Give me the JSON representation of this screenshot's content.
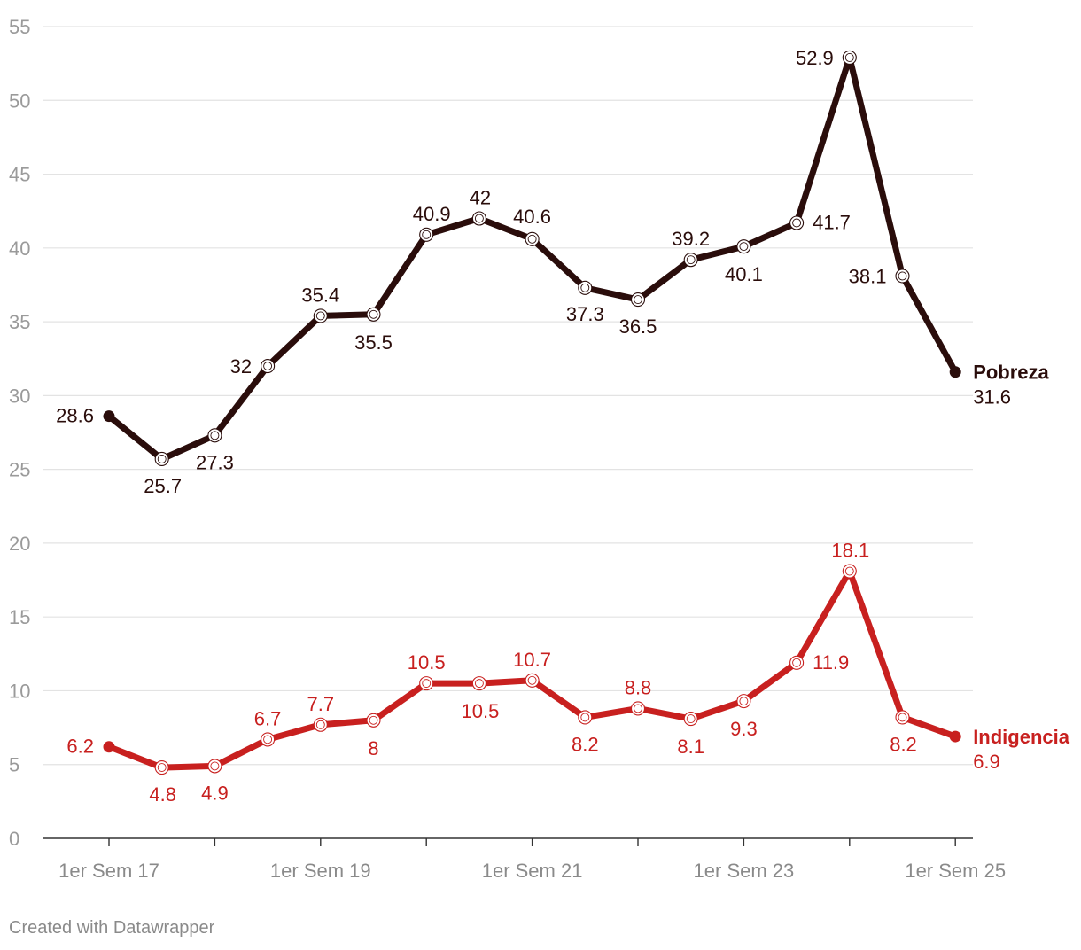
{
  "chart_data": {
    "type": "line",
    "title": "",
    "xlabel": "",
    "ylabel": "",
    "ylim": [
      0,
      55
    ],
    "yticks": [
      0,
      5,
      10,
      15,
      20,
      25,
      30,
      35,
      40,
      45,
      50,
      55
    ],
    "grid": true,
    "x_tick_labels": [
      "1er Sem 17",
      "1er Sem 19",
      "1er Sem 21",
      "1er Sem 23",
      "1er Sem 25"
    ],
    "x_tick_label_indices": [
      0,
      4,
      8,
      12,
      16
    ],
    "point_count": 17,
    "series": [
      {
        "name": "Pobreza",
        "color": "#2a0d0b",
        "values": [
          28.6,
          25.7,
          27.3,
          32,
          35.4,
          35.5,
          40.9,
          42,
          40.6,
          37.3,
          36.5,
          39.2,
          40.1,
          41.7,
          52.9,
          38.1,
          31.6
        ],
        "labels": [
          "28.6",
          "25.7",
          "27.3",
          "32",
          "35.4",
          "35.5",
          "40.9",
          "42",
          "40.6",
          "37.3",
          "36.5",
          "39.2",
          "40.1",
          "41.7",
          "52.9",
          "38.1",
          "31.6"
        ]
      },
      {
        "name": "Indigencia",
        "color": "#c8201f",
        "values": [
          6.2,
          4.8,
          4.9,
          6.7,
          7.7,
          8,
          10.5,
          10.5,
          10.7,
          8.2,
          8.8,
          8.1,
          9.3,
          11.9,
          18.1,
          8.2,
          6.9
        ],
        "labels": [
          "6.2",
          "4.8",
          "4.9",
          "6.7",
          "7.7",
          "8",
          "10.5",
          "10.5",
          "10.7",
          "8.2",
          "8.8",
          "8.1",
          "9.3",
          "11.9",
          "18.1",
          "8.2",
          "6.9"
        ]
      }
    ]
  },
  "footer": {
    "credit": "Created with Datawrapper"
  }
}
